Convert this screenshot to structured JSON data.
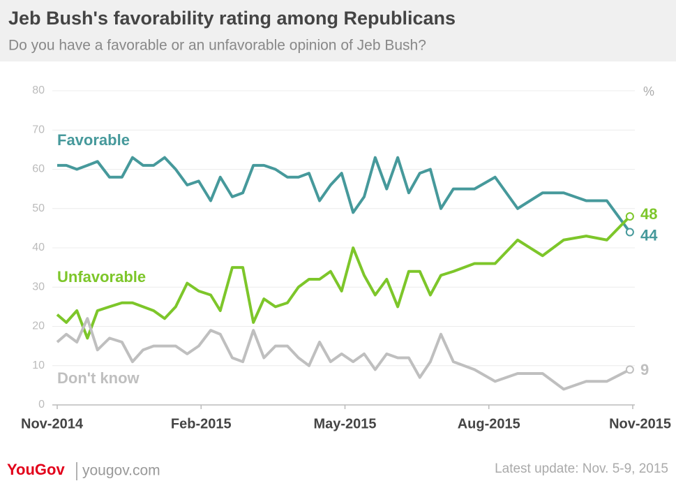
{
  "chart_data": {
    "type": "line",
    "title": "Jeb Bush's favorability rating among Republicans",
    "subtitle": "Do you have a favorable or an unfavorable opinion of Jeb Bush?",
    "ylabel": "%",
    "x": [
      0,
      0.19,
      0.41,
      0.63,
      0.84,
      1.09,
      1.35,
      1.57,
      1.79,
      2.01,
      2.24,
      2.47,
      2.71,
      2.95,
      3.2,
      3.4,
      3.65,
      3.87,
      4.09,
      4.31,
      4.55,
      4.8,
      5.03,
      5.25,
      5.47,
      5.7,
      5.93,
      6.17,
      6.4,
      6.63,
      6.87,
      7.1,
      7.33,
      7.56,
      7.78,
      8.0,
      8.26,
      8.7,
      9.13,
      9.6,
      10.12,
      10.56,
      11.03,
      11.46,
      11.94
    ],
    "series": [
      {
        "name": "Favorable",
        "color": "#46999b",
        "values": [
          61,
          61,
          60,
          61,
          62,
          58,
          58,
          63,
          61,
          61,
          63,
          60,
          56,
          57,
          52,
          58,
          53,
          54,
          61,
          61,
          60,
          58,
          58,
          59,
          52,
          56,
          59,
          49,
          53,
          63,
          55,
          63,
          54,
          59,
          60,
          50,
          55,
          55,
          58,
          50,
          54,
          54,
          52,
          52,
          44
        ]
      },
      {
        "name": "Unfavorable",
        "color": "#7dc62a",
        "values": [
          23,
          21,
          24,
          17,
          24,
          25,
          26,
          26,
          25,
          24,
          22,
          25,
          31,
          29,
          28,
          24,
          35,
          35,
          21,
          27,
          25,
          26,
          30,
          32,
          32,
          34,
          29,
          40,
          33,
          28,
          32,
          25,
          34,
          34,
          28,
          33,
          34,
          36,
          36,
          42,
          38,
          42,
          43,
          42,
          48
        ]
      },
      {
        "name": "Don't know",
        "color": "#bfbfbf",
        "values": [
          16,
          18,
          16,
          22,
          14,
          17,
          16,
          11,
          14,
          15,
          15,
          15,
          13,
          15,
          19,
          18,
          12,
          11,
          19,
          12,
          15,
          15,
          12,
          10,
          16,
          11,
          13,
          11,
          13,
          9,
          13,
          12,
          12,
          7,
          11,
          18,
          11,
          9,
          6,
          8,
          8,
          4,
          6,
          6,
          9
        ]
      }
    ],
    "xlim": [
      0,
      12
    ],
    "xticks": [
      {
        "value": 0,
        "label": "Nov-2014"
      },
      {
        "value": 3,
        "label": "Feb-2015"
      },
      {
        "value": 6,
        "label": "May-2015"
      },
      {
        "value": 9,
        "label": "Aug-2015"
      },
      {
        "value": 12,
        "label": "Nov-2015"
      }
    ],
    "ylim": [
      0,
      80
    ],
    "yticks": [
      0,
      10,
      20,
      30,
      40,
      50,
      60,
      70,
      80
    ],
    "grid": true
  },
  "footer": {
    "logo": "YouGov",
    "site": "yougov.com",
    "update": "Latest update: Nov. 5-9, 2015"
  }
}
